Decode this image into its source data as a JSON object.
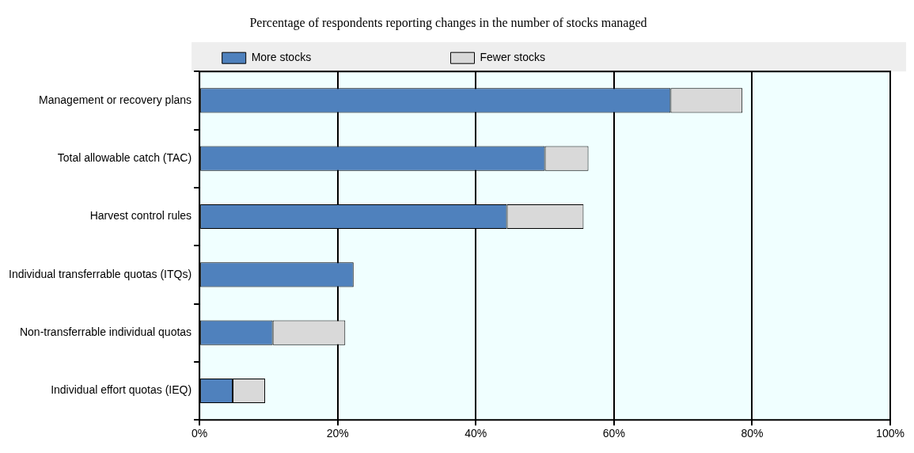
{
  "chart_data": {
    "type": "bar",
    "title": "Percentage of respondents reporting changes in the number of stocks managed",
    "orientation": "horizontal",
    "stacked": true,
    "categories": [
      "Management or recovery plans",
      "Total allowable catch (TAC)",
      "Harvest control rules",
      "Individual transferrable quotas (ITQs)",
      "Non-transferrable individual quotas",
      "Individual effort quotas (IEQ)"
    ],
    "series": [
      {
        "name": "More stocks",
        "color": "#4f81bd",
        "values": [
          68.2,
          50.0,
          44.5,
          22.3,
          10.6,
          4.8
        ]
      },
      {
        "name": "Fewer stocks",
        "color": "#d9d9d9",
        "values": [
          10.4,
          6.3,
          11.1,
          0,
          10.5,
          4.7
        ]
      }
    ],
    "xlim": [
      0,
      100
    ],
    "xticks": [
      {
        "value": 0,
        "label": "0%"
      },
      {
        "value": 20,
        "label": "20%"
      },
      {
        "value": 40,
        "label": "40%"
      },
      {
        "value": 60,
        "label": "60%"
      },
      {
        "value": 80,
        "label": "80%"
      },
      {
        "value": 100,
        "label": "100%"
      }
    ],
    "grid": "x",
    "legend": "top"
  }
}
